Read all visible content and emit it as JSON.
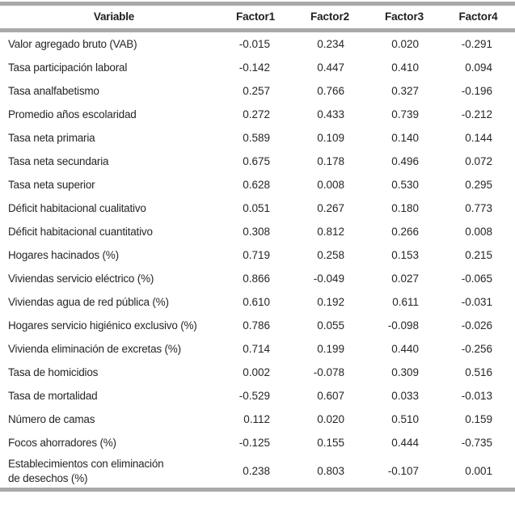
{
  "colors": {
    "rule_gray": "#a9a9a9",
    "text": "#262626"
  },
  "table": {
    "columns": [
      "Variable",
      "Factor1",
      "Factor2",
      "Factor3",
      "Factor4"
    ],
    "rows": [
      {
        "variable": "Valor agregado bruto (VAB)",
        "values": [
          "-0.015",
          "0.234",
          "0.020",
          "-0.291"
        ]
      },
      {
        "variable": "Tasa participación laboral",
        "values": [
          "-0.142",
          "0.447",
          "0.410",
          "0.094"
        ]
      },
      {
        "variable": "Tasa analfabetismo",
        "values": [
          "0.257",
          "0.766",
          "0.327",
          "-0.196"
        ]
      },
      {
        "variable": "Promedio años escolaridad",
        "values": [
          "0.272",
          "0.433",
          "0.739",
          "-0.212"
        ]
      },
      {
        "variable": "Tasa neta primaria",
        "values": [
          "0.589",
          "0.109",
          "0.140",
          "0.144"
        ]
      },
      {
        "variable": "Tasa neta secundaria",
        "values": [
          "0.675",
          "0.178",
          "0.496",
          "0.072"
        ]
      },
      {
        "variable": "Tasa neta superior",
        "values": [
          "0.628",
          "0.008",
          "0.530",
          "0.295"
        ]
      },
      {
        "variable": "Déficit habitacional cualitativo",
        "values": [
          "0.051",
          "0.267",
          "0.180",
          "0.773"
        ]
      },
      {
        "variable": "Déficit habitacional cuantitativo",
        "values": [
          "0.308",
          "0.812",
          "0.266",
          "0.008"
        ]
      },
      {
        "variable": "Hogares hacinados (%)",
        "values": [
          "0.719",
          "0.258",
          "0.153",
          "0.215"
        ]
      },
      {
        "variable": "Viviendas servicio eléctrico (%)",
        "values": [
          "0.866",
          "-0.049",
          "0.027",
          "-0.065"
        ]
      },
      {
        "variable": "Viviendas agua de red pública (%)",
        "values": [
          "0.610",
          "0.192",
          "0.611",
          "-0.031"
        ]
      },
      {
        "variable": "Hogares servicio higiénico exclusivo (%)",
        "values": [
          "0.786",
          "0.055",
          "-0.098",
          "-0.026"
        ]
      },
      {
        "variable": "Vivienda eliminación de excretas (%)",
        "values": [
          "0.714",
          "0.199",
          "0.440",
          "-0.256"
        ]
      },
      {
        "variable": "Tasa de homicidios",
        "values": [
          "0.002",
          "-0.078",
          "0.309",
          "0.516"
        ]
      },
      {
        "variable": "Tasa de mortalidad",
        "values": [
          "-0.529",
          "0.607",
          "0.033",
          "-0.013"
        ]
      },
      {
        "variable": "Número de camas",
        "values": [
          "0.112",
          "0.020",
          "0.510",
          "0.159"
        ]
      },
      {
        "variable": "Focos ahorradores (%)",
        "values": [
          "-0.125",
          "0.155",
          "0.444",
          "-0.735"
        ]
      },
      {
        "variable": "Establecimientos con eliminación\nde desechos (%)",
        "values": [
          "0.238",
          "0.803",
          "-0.107",
          "0.001"
        ]
      }
    ]
  }
}
